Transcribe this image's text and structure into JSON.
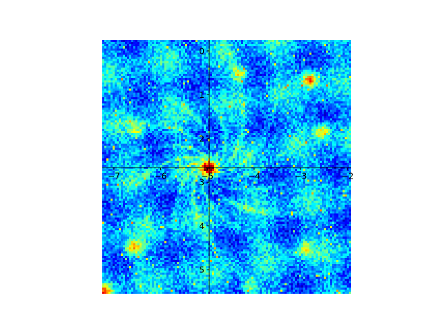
{
  "chart_data": {
    "type": "heatmap",
    "title": "",
    "xlabel": "",
    "ylabel": "",
    "xlim": [
      -7.25,
      -1.93
    ],
    "ylim": [
      5.55,
      -0.25
    ],
    "y_inverted": true,
    "axes_cross_at": {
      "x": -4.96,
      "y": 2.67
    },
    "x_ticks": [
      {
        "value": -7,
        "label": "−7"
      },
      {
        "value": -6,
        "label": "−6"
      },
      {
        "value": -5,
        "label": "−5"
      },
      {
        "value": -4,
        "label": "−4"
      },
      {
        "value": -3,
        "label": "−3"
      },
      {
        "value": -2,
        "label": "−2"
      }
    ],
    "y_ticks": [
      {
        "value": 0,
        "label": "0"
      },
      {
        "value": 1,
        "label": "1"
      },
      {
        "value": 2,
        "label": "2"
      },
      {
        "value": 3,
        "label": "3"
      },
      {
        "value": 4,
        "label": "4"
      },
      {
        "value": 5,
        "label": "5"
      }
    ],
    "colormap": "jet",
    "colormap_stops": [
      "#00007f",
      "#0000ff",
      "#007fff",
      "#00ffff",
      "#7fff7f",
      "#ffff00",
      "#ff7f00",
      "#ff0000",
      "#7f0000"
    ],
    "hotspots": [
      {
        "x": -4.96,
        "y": 2.67,
        "intensity": 1.0
      },
      {
        "x": -2.8,
        "y": 0.65,
        "intensity": 0.7
      },
      {
        "x": -2.55,
        "y": 1.85,
        "intensity": 0.55
      },
      {
        "x": -4.3,
        "y": 0.5,
        "intensity": 0.5
      },
      {
        "x": -6.6,
        "y": 4.5,
        "intensity": 0.55
      },
      {
        "x": -7.2,
        "y": 5.5,
        "intensity": 0.6
      },
      {
        "x": -6.5,
        "y": 1.8,
        "intensity": 0.35
      },
      {
        "x": -4.1,
        "y": 5.4,
        "intensity": 0.4
      },
      {
        "x": -2.9,
        "y": 4.5,
        "intensity": 0.35
      }
    ],
    "pattern": "spiral streaks radiating from the hotspot at the axes origin",
    "grid": false,
    "legend": "none"
  }
}
